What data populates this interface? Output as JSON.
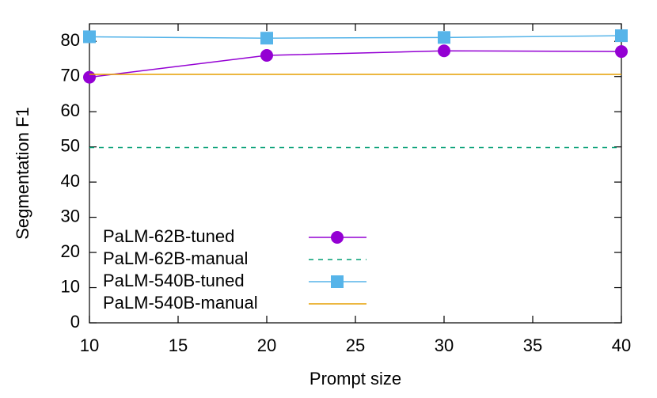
{
  "chart_data": {
    "type": "line",
    "xlabel": "Prompt size",
    "ylabel": "Segmentation F1",
    "x": [
      10,
      20,
      30,
      40
    ],
    "xlim": [
      10,
      40
    ],
    "xticks": [
      10,
      15,
      20,
      25,
      30,
      35,
      40
    ],
    "ylim": [
      0,
      85
    ],
    "yticks": [
      0,
      10,
      20,
      30,
      40,
      50,
      60,
      70,
      80
    ],
    "legend": "lower left",
    "series": [
      {
        "name": "PaLM-62B-tuned",
        "color": "#9400d3",
        "marker": "circle",
        "dash": false,
        "values": [
          69.8,
          76.0,
          77.3,
          77.1
        ]
      },
      {
        "name": "PaLM-62B-manual",
        "color": "#009e73",
        "marker": null,
        "dash": true,
        "values": [
          49.8,
          49.8,
          49.8,
          49.8
        ]
      },
      {
        "name": "PaLM-540B-tuned",
        "color": "#56b4e9",
        "marker": "square",
        "dash": false,
        "values": [
          81.3,
          80.9,
          81.1,
          81.6
        ]
      },
      {
        "name": "PaLM-540B-manual",
        "color": "#e69f00",
        "marker": null,
        "dash": false,
        "values": [
          70.6,
          70.6,
          70.6,
          70.6
        ]
      }
    ]
  }
}
